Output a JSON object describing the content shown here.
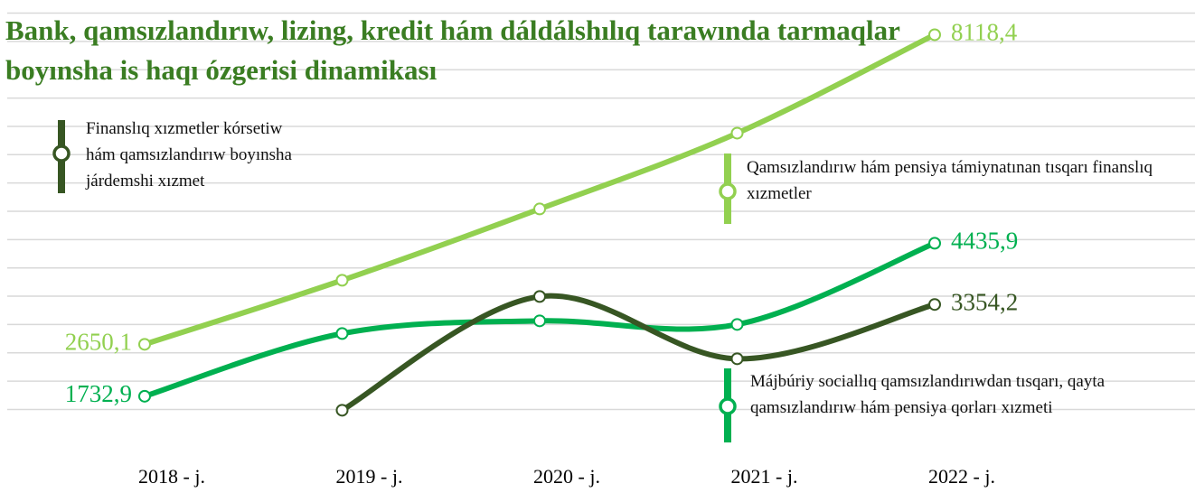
{
  "chart_data": {
    "type": "line",
    "title": "Bank, qamsızlandırıw, lizing, kredit hám dáldálshılıq tarawında tarmaqlar boyınsha is haqı ózgerisi dinamikası",
    "categories": [
      "2018 - j.",
      "2019 - j.",
      "2020 - j.",
      "2021 - j.",
      "2022 - j."
    ],
    "series": [
      {
        "name": "Qamsızlandırıw hám pensiya támiynatınan tısqarı finanslıq xızmetler",
        "color": "#92d050",
        "values": [
          2650.1,
          3782,
          5041,
          6380,
          8118.4
        ],
        "value_labels": [
          "2650,1",
          null,
          null,
          null,
          "8118,4"
        ]
      },
      {
        "name": "Májbúriy sociallıq qamsızlandırıwdan tısqarı, qayta qamsızlandırıw hám pensiya qorları xızmeti",
        "color": "#00b050",
        "values": [
          1732.9,
          2841,
          3065,
          3001,
          4435.9
        ],
        "value_labels": [
          "1732,9",
          null,
          null,
          null,
          "4435,9"
        ]
      },
      {
        "name": "Finanslıq xızmetler kórsetiw hám qamsızlandırıw boyınsha járdemshi xızmet",
        "color": "#375623",
        "values": [
          null,
          1486,
          3495,
          2395,
          3354.2
        ],
        "value_labels": [
          null,
          null,
          null,
          null,
          "3354,2"
        ]
      }
    ],
    "ylim": [
      1300,
      8700
    ],
    "yticks": [
      1500,
      2000,
      2500,
      3000,
      3500,
      4000,
      4500,
      5000,
      5500,
      6000,
      6500,
      7000,
      7500,
      8000,
      8500
    ],
    "grid": true
  }
}
